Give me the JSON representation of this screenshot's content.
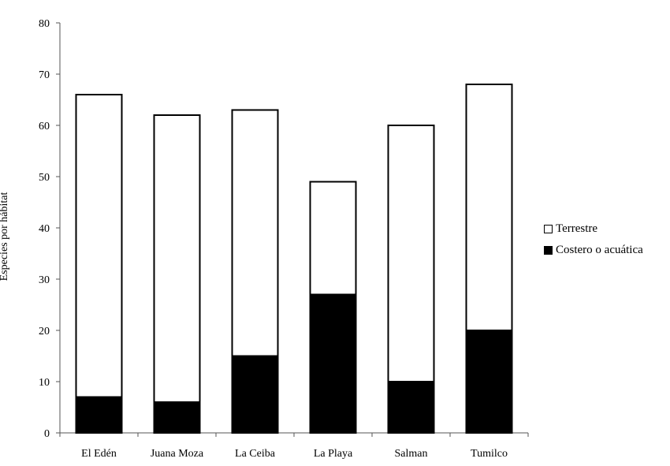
{
  "chart_data": {
    "type": "bar",
    "stacked": true,
    "title": "",
    "xlabel": "",
    "ylabel": "Especies por hábitat",
    "ylim": [
      0,
      80
    ],
    "yticks": [
      0,
      10,
      20,
      30,
      40,
      50,
      60,
      70,
      80
    ],
    "grid": false,
    "legend_position": "right",
    "categories": [
      "El Edén",
      "Juana Moza",
      "La Ceiba",
      "La Playa",
      "Salman",
      "Tumilco"
    ],
    "series": [
      {
        "name": "Costero o acuática",
        "color": "#000000",
        "values": [
          7,
          6,
          15,
          27,
          10,
          20
        ]
      },
      {
        "name": "Terrestre",
        "color": "#ffffff",
        "values": [
          59,
          56,
          48,
          22,
          50,
          48
        ]
      }
    ],
    "totals": [
      66,
      62,
      63,
      49,
      60,
      68
    ]
  },
  "legend": {
    "items": [
      {
        "label": "Terrestre",
        "fill": "#ffffff"
      },
      {
        "label": "Costero o acuática",
        "fill": "#000000"
      }
    ]
  }
}
